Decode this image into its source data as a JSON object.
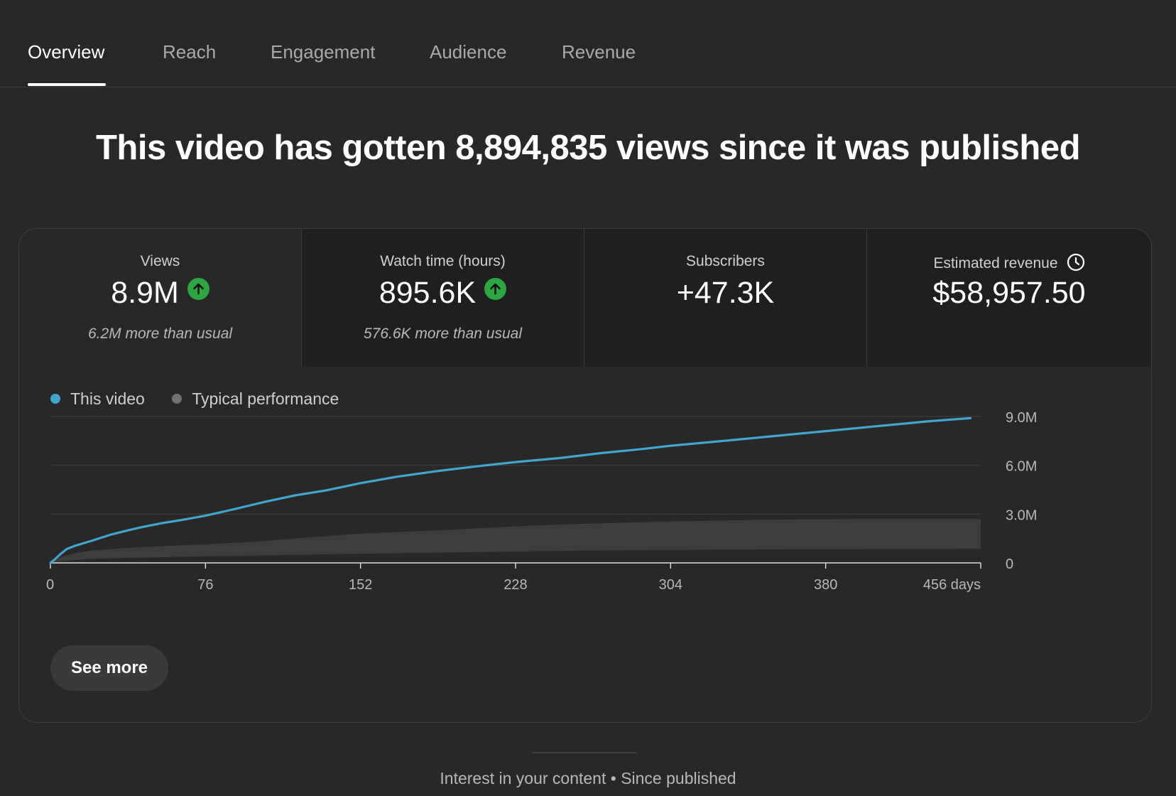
{
  "tabs": [
    {
      "label": "Overview",
      "active": true
    },
    {
      "label": "Reach",
      "active": false
    },
    {
      "label": "Engagement",
      "active": false
    },
    {
      "label": "Audience",
      "active": false
    },
    {
      "label": "Revenue",
      "active": false
    }
  ],
  "headline": "This video has gotten 8,894,835 views since it was published",
  "metrics": [
    {
      "label": "Views",
      "value": "8.9M",
      "sub": "6.2M more than usual",
      "trend": "up"
    },
    {
      "label": "Watch time (hours)",
      "value": "895.6K",
      "sub": "576.6K more than usual",
      "trend": "up"
    },
    {
      "label": "Subscribers",
      "value": "+47.3K",
      "sub": "",
      "trend": ""
    },
    {
      "label": "Estimated revenue",
      "value": "$58,957.50",
      "sub": "",
      "trend": "",
      "icon": "clock-icon"
    }
  ],
  "legend": [
    {
      "label": "This video",
      "color": "#3ea6d0"
    },
    {
      "label": "Typical performance",
      "color": "#717171"
    }
  ],
  "chart_data": {
    "type": "line",
    "x_unit": "days",
    "xlim": [
      0,
      456
    ],
    "ylim": [
      0,
      9000000
    ],
    "x_ticks": [
      {
        "value": 0,
        "label": "0"
      },
      {
        "value": 76,
        "label": "76"
      },
      {
        "value": 152,
        "label": "152"
      },
      {
        "value": 228,
        "label": "228"
      },
      {
        "value": 304,
        "label": "304"
      },
      {
        "value": 380,
        "label": "380"
      },
      {
        "value": 456,
        "label": "456 days"
      }
    ],
    "y_ticks": [
      {
        "value": 0,
        "label": "0"
      },
      {
        "value": 3000000,
        "label": "3.0M"
      },
      {
        "value": 6000000,
        "label": "6.0M"
      },
      {
        "value": 9000000,
        "label": "9.0M"
      }
    ],
    "grid": true,
    "series": [
      {
        "name": "This video",
        "color": "#3ea6d0",
        "x": [
          0,
          2,
          5,
          8,
          12,
          16,
          20,
          25,
          30,
          38,
          45,
          55,
          65,
          76,
          90,
          105,
          120,
          135,
          152,
          170,
          190,
          210,
          228,
          250,
          270,
          290,
          304,
          330,
          355,
          380,
          405,
          430,
          451
        ],
        "y": [
          0,
          200000,
          550000,
          850000,
          1050000,
          1200000,
          1350000,
          1550000,
          1750000,
          2000000,
          2200000,
          2450000,
          2650000,
          2900000,
          3300000,
          3750000,
          4150000,
          4450000,
          4900000,
          5300000,
          5650000,
          5950000,
          6200000,
          6450000,
          6750000,
          7000000,
          7200000,
          7500000,
          7800000,
          8100000,
          8400000,
          8700000,
          8900000
        ]
      },
      {
        "name": "Typical performance",
        "color": "#717171",
        "type": "band",
        "x": [
          0,
          5,
          12,
          20,
          35,
          50,
          76,
          100,
          120,
          152,
          190,
          228,
          260,
          304,
          350,
          400,
          456
        ],
        "lower": [
          0,
          100000,
          180000,
          240000,
          300000,
          340000,
          400000,
          450000,
          500000,
          560000,
          630000,
          700000,
          750000,
          800000,
          830000,
          850000,
          860000
        ],
        "upper": [
          0,
          350000,
          600000,
          750000,
          900000,
          1000000,
          1150000,
          1300000,
          1500000,
          1800000,
          2000000,
          2250000,
          2400000,
          2550000,
          2650000,
          2700000,
          2700000
        ]
      }
    ]
  },
  "see_more_label": "See more",
  "footer_text": "Interest in your content • Since published"
}
